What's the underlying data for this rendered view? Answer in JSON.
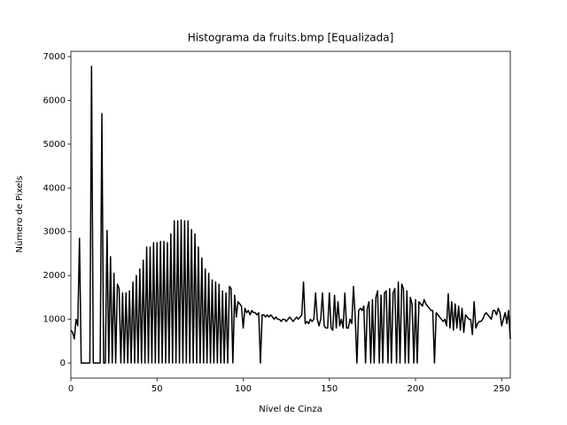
{
  "chart_data": {
    "type": "line",
    "title": "Histograma da fruits.bmp [Equalizada]",
    "x_label": "Nível de Cinza",
    "y_label": "Número de Pixels",
    "color": "#000000",
    "grid": false,
    "xlim": [
      0,
      255
    ],
    "xticks": [
      0,
      50,
      100,
      150,
      200,
      250
    ],
    "ylim": [
      -344,
      7121
    ],
    "yticks": [
      0,
      1000,
      2000,
      3000,
      4000,
      5000,
      6000,
      7000
    ],
    "values": [
      750,
      700,
      550,
      1000,
      850,
      2850,
      0,
      0,
      0,
      0,
      0,
      0,
      6780,
      0,
      0,
      0,
      0,
      0,
      5700,
      0,
      0,
      3030,
      0,
      2430,
      0,
      2050,
      0,
      1800,
      1700,
      0,
      1600,
      0,
      1600,
      0,
      1650,
      0,
      1850,
      0,
      2000,
      0,
      2150,
      0,
      2350,
      0,
      2650,
      0,
      2650,
      0,
      2750,
      0,
      2750,
      0,
      2780,
      0,
      2780,
      0,
      2750,
      0,
      2950,
      0,
      3250,
      0,
      3250,
      0,
      3270,
      0,
      3250,
      0,
      3250,
      0,
      3050,
      0,
      2950,
      0,
      2650,
      0,
      2400,
      0,
      2150,
      0,
      2050,
      0,
      1900,
      0,
      1850,
      0,
      1800,
      0,
      1650,
      0,
      1600,
      0,
      1750,
      1700,
      0,
      1550,
      1050,
      1400,
      1350,
      1300,
      800,
      1250,
      1150,
      1200,
      1100,
      1200,
      1150,
      1150,
      1100,
      1150,
      0,
      1100,
      1100,
      1050,
      1100,
      1050,
      1100,
      1050,
      1000,
      1050,
      1000,
      1000,
      950,
      1000,
      1000,
      950,
      1000,
      1050,
      1000,
      950,
      1000,
      1050,
      1000,
      1050,
      1100,
      1850,
      900,
      950,
      900,
      1000,
      950,
      1000,
      1600,
      1000,
      850,
      1000,
      1600,
      850,
      800,
      800,
      1600,
      800,
      750,
      1550,
      800,
      1400,
      850,
      1000,
      800,
      1600,
      800,
      800,
      1000,
      900,
      1750,
      1050,
      0,
      1200,
      1250,
      1200,
      1300,
      0,
      1250,
      1400,
      0,
      1450,
      0,
      1500,
      1650,
      0,
      1550,
      0,
      1600,
      1650,
      0,
      1700,
      0,
      1600,
      1700,
      0,
      1850,
      0,
      1800,
      1700,
      0,
      1650,
      0,
      1500,
      1350,
      0,
      1450,
      0,
      1400,
      1350,
      1300,
      1450,
      1350,
      1300,
      1250,
      1200,
      1200,
      0,
      1150,
      1100,
      1050,
      1000,
      950,
      1000,
      850,
      1580,
      800,
      1400,
      750,
      1350,
      800,
      1300,
      750,
      1250,
      700,
      1100,
      1050,
      1000,
      1000,
      650,
      1400,
      800,
      900,
      950,
      950,
      1000,
      1100,
      1150,
      1100,
      1050,
      1000,
      1200,
      1200,
      1100,
      1250,
      1150,
      850,
      1000,
      1150,
      900,
      1200,
      550
    ]
  }
}
